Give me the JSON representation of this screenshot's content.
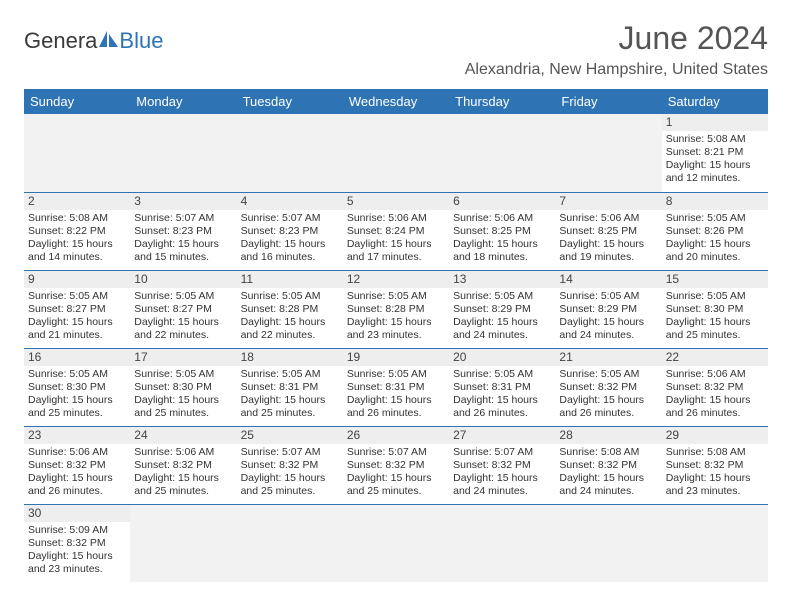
{
  "logo": {
    "part1": "Genera",
    "part2": "Blue"
  },
  "header": {
    "month_title": "June 2024",
    "location": "Alexandria, New Hampshire, United States"
  },
  "colors": {
    "accent": "#2e74b5",
    "header_bg": "#2e74b5",
    "header_text": "#ffffff",
    "daynum_bg": "#eeeeee",
    "empty_bg": "#f2f2f2",
    "text": "#333333",
    "title_text": "#555555"
  },
  "day_headers": [
    "Sunday",
    "Monday",
    "Tuesday",
    "Wednesday",
    "Thursday",
    "Friday",
    "Saturday"
  ],
  "weeks": [
    [
      null,
      null,
      null,
      null,
      null,
      null,
      {
        "n": "1",
        "sr": "Sunrise: 5:08 AM",
        "ss": "Sunset: 8:21 PM",
        "dl1": "Daylight: 15 hours",
        "dl2": "and 12 minutes."
      }
    ],
    [
      {
        "n": "2",
        "sr": "Sunrise: 5:08 AM",
        "ss": "Sunset: 8:22 PM",
        "dl1": "Daylight: 15 hours",
        "dl2": "and 14 minutes."
      },
      {
        "n": "3",
        "sr": "Sunrise: 5:07 AM",
        "ss": "Sunset: 8:23 PM",
        "dl1": "Daylight: 15 hours",
        "dl2": "and 15 minutes."
      },
      {
        "n": "4",
        "sr": "Sunrise: 5:07 AM",
        "ss": "Sunset: 8:23 PM",
        "dl1": "Daylight: 15 hours",
        "dl2": "and 16 minutes."
      },
      {
        "n": "5",
        "sr": "Sunrise: 5:06 AM",
        "ss": "Sunset: 8:24 PM",
        "dl1": "Daylight: 15 hours",
        "dl2": "and 17 minutes."
      },
      {
        "n": "6",
        "sr": "Sunrise: 5:06 AM",
        "ss": "Sunset: 8:25 PM",
        "dl1": "Daylight: 15 hours",
        "dl2": "and 18 minutes."
      },
      {
        "n": "7",
        "sr": "Sunrise: 5:06 AM",
        "ss": "Sunset: 8:25 PM",
        "dl1": "Daylight: 15 hours",
        "dl2": "and 19 minutes."
      },
      {
        "n": "8",
        "sr": "Sunrise: 5:05 AM",
        "ss": "Sunset: 8:26 PM",
        "dl1": "Daylight: 15 hours",
        "dl2": "and 20 minutes."
      }
    ],
    [
      {
        "n": "9",
        "sr": "Sunrise: 5:05 AM",
        "ss": "Sunset: 8:27 PM",
        "dl1": "Daylight: 15 hours",
        "dl2": "and 21 minutes."
      },
      {
        "n": "10",
        "sr": "Sunrise: 5:05 AM",
        "ss": "Sunset: 8:27 PM",
        "dl1": "Daylight: 15 hours",
        "dl2": "and 22 minutes."
      },
      {
        "n": "11",
        "sr": "Sunrise: 5:05 AM",
        "ss": "Sunset: 8:28 PM",
        "dl1": "Daylight: 15 hours",
        "dl2": "and 22 minutes."
      },
      {
        "n": "12",
        "sr": "Sunrise: 5:05 AM",
        "ss": "Sunset: 8:28 PM",
        "dl1": "Daylight: 15 hours",
        "dl2": "and 23 minutes."
      },
      {
        "n": "13",
        "sr": "Sunrise: 5:05 AM",
        "ss": "Sunset: 8:29 PM",
        "dl1": "Daylight: 15 hours",
        "dl2": "and 24 minutes."
      },
      {
        "n": "14",
        "sr": "Sunrise: 5:05 AM",
        "ss": "Sunset: 8:29 PM",
        "dl1": "Daylight: 15 hours",
        "dl2": "and 24 minutes."
      },
      {
        "n": "15",
        "sr": "Sunrise: 5:05 AM",
        "ss": "Sunset: 8:30 PM",
        "dl1": "Daylight: 15 hours",
        "dl2": "and 25 minutes."
      }
    ],
    [
      {
        "n": "16",
        "sr": "Sunrise: 5:05 AM",
        "ss": "Sunset: 8:30 PM",
        "dl1": "Daylight: 15 hours",
        "dl2": "and 25 minutes."
      },
      {
        "n": "17",
        "sr": "Sunrise: 5:05 AM",
        "ss": "Sunset: 8:30 PM",
        "dl1": "Daylight: 15 hours",
        "dl2": "and 25 minutes."
      },
      {
        "n": "18",
        "sr": "Sunrise: 5:05 AM",
        "ss": "Sunset: 8:31 PM",
        "dl1": "Daylight: 15 hours",
        "dl2": "and 25 minutes."
      },
      {
        "n": "19",
        "sr": "Sunrise: 5:05 AM",
        "ss": "Sunset: 8:31 PM",
        "dl1": "Daylight: 15 hours",
        "dl2": "and 26 minutes."
      },
      {
        "n": "20",
        "sr": "Sunrise: 5:05 AM",
        "ss": "Sunset: 8:31 PM",
        "dl1": "Daylight: 15 hours",
        "dl2": "and 26 minutes."
      },
      {
        "n": "21",
        "sr": "Sunrise: 5:05 AM",
        "ss": "Sunset: 8:32 PM",
        "dl1": "Daylight: 15 hours",
        "dl2": "and 26 minutes."
      },
      {
        "n": "22",
        "sr": "Sunrise: 5:06 AM",
        "ss": "Sunset: 8:32 PM",
        "dl1": "Daylight: 15 hours",
        "dl2": "and 26 minutes."
      }
    ],
    [
      {
        "n": "23",
        "sr": "Sunrise: 5:06 AM",
        "ss": "Sunset: 8:32 PM",
        "dl1": "Daylight: 15 hours",
        "dl2": "and 26 minutes."
      },
      {
        "n": "24",
        "sr": "Sunrise: 5:06 AM",
        "ss": "Sunset: 8:32 PM",
        "dl1": "Daylight: 15 hours",
        "dl2": "and 25 minutes."
      },
      {
        "n": "25",
        "sr": "Sunrise: 5:07 AM",
        "ss": "Sunset: 8:32 PM",
        "dl1": "Daylight: 15 hours",
        "dl2": "and 25 minutes."
      },
      {
        "n": "26",
        "sr": "Sunrise: 5:07 AM",
        "ss": "Sunset: 8:32 PM",
        "dl1": "Daylight: 15 hours",
        "dl2": "and 25 minutes."
      },
      {
        "n": "27",
        "sr": "Sunrise: 5:07 AM",
        "ss": "Sunset: 8:32 PM",
        "dl1": "Daylight: 15 hours",
        "dl2": "and 24 minutes."
      },
      {
        "n": "28",
        "sr": "Sunrise: 5:08 AM",
        "ss": "Sunset: 8:32 PM",
        "dl1": "Daylight: 15 hours",
        "dl2": "and 24 minutes."
      },
      {
        "n": "29",
        "sr": "Sunrise: 5:08 AM",
        "ss": "Sunset: 8:32 PM",
        "dl1": "Daylight: 15 hours",
        "dl2": "and 23 minutes."
      }
    ],
    [
      {
        "n": "30",
        "sr": "Sunrise: 5:09 AM",
        "ss": "Sunset: 8:32 PM",
        "dl1": "Daylight: 15 hours",
        "dl2": "and 23 minutes."
      },
      null,
      null,
      null,
      null,
      null,
      null
    ]
  ]
}
